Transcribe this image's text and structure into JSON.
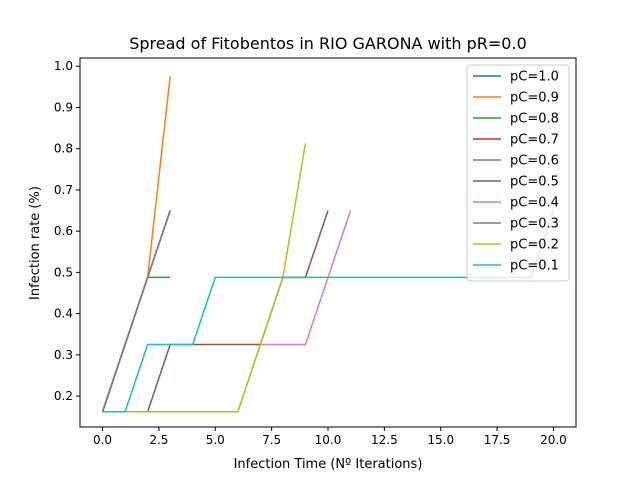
{
  "chart_data": {
    "type": "line",
    "title": "Spread of Fitobentos in RIO GARONA with pR=0.0",
    "xlabel": "Infection Time (Nº Iterations)",
    "ylabel": "Infection rate (%)",
    "xlim": [
      -1.0,
      21.0
    ],
    "ylim": [
      0.125,
      1.02
    ],
    "xticks": [
      0.0,
      2.5,
      5.0,
      7.5,
      10.0,
      12.5,
      15.0,
      17.5,
      20.0
    ],
    "xtick_labels": [
      "0.0",
      "2.5",
      "5.0",
      "7.5",
      "10.0",
      "12.5",
      "15.0",
      "17.5",
      "20.0"
    ],
    "yticks": [
      0.2,
      0.3,
      0.4,
      0.5,
      0.6,
      0.7,
      0.8,
      0.9,
      1.0
    ],
    "ytick_labels": [
      "0.2",
      "0.3",
      "0.4",
      "0.5",
      "0.6",
      "0.7",
      "0.8",
      "0.9",
      "1.0"
    ],
    "grid": false,
    "legend_position": "top-right",
    "series": [
      {
        "name": "pC=1.0",
        "color": "#1f77b4",
        "x": [
          0,
          1,
          2,
          3
        ],
        "y": [
          0.162,
          0.325,
          0.488,
          0.65
        ]
      },
      {
        "name": "pC=0.9",
        "color": "#ff7f0e",
        "x": [
          0,
          1,
          2,
          3
        ],
        "y": [
          0.162,
          0.325,
          0.488,
          0.976
        ]
      },
      {
        "name": "pC=0.8",
        "color": "#2ca02c",
        "x": [
          0,
          1,
          2,
          3
        ],
        "y": [
          0.162,
          0.325,
          0.488,
          0.488
        ]
      },
      {
        "name": "pC=0.7",
        "color": "#d62728",
        "x": [
          0,
          1,
          2,
          3
        ],
        "y": [
          0.162,
          0.325,
          0.488,
          0.65
        ]
      },
      {
        "name": "pC=0.6",
        "color": "#9467bd",
        "x": [
          0,
          1,
          2,
          3
        ],
        "y": [
          0.162,
          0.325,
          0.488,
          0.65
        ]
      },
      {
        "name": "pC=0.5",
        "color": "#8c564b",
        "x": [
          0,
          1,
          2,
          3,
          4,
          5,
          6,
          7,
          8,
          9,
          10
        ],
        "y": [
          0.162,
          0.162,
          0.162,
          0.325,
          0.325,
          0.325,
          0.325,
          0.325,
          0.488,
          0.488,
          0.65
        ]
      },
      {
        "name": "pC=0.4",
        "color": "#e377c2",
        "x": [
          0,
          1,
          2,
          3,
          4,
          5,
          6,
          7,
          8,
          9,
          10,
          11
        ],
        "y": [
          0.162,
          0.162,
          0.162,
          0.162,
          0.162,
          0.162,
          0.162,
          0.325,
          0.325,
          0.325,
          0.488,
          0.65
        ]
      },
      {
        "name": "pC=0.3",
        "color": "#7f7f7f",
        "x": [
          0,
          1,
          2,
          3
        ],
        "y": [
          0.162,
          0.325,
          0.488,
          0.65
        ]
      },
      {
        "name": "pC=0.2",
        "color": "#bcbd22",
        "x": [
          0,
          1,
          2,
          3,
          4,
          5,
          6,
          7,
          8,
          9
        ],
        "y": [
          0.162,
          0.162,
          0.162,
          0.162,
          0.162,
          0.162,
          0.162,
          0.325,
          0.488,
          0.813
        ]
      },
      {
        "name": "pC=0.1",
        "color": "#17becf",
        "x": [
          0,
          1,
          2,
          3,
          4,
          5,
          6,
          7,
          8,
          9,
          10,
          11,
          12,
          13,
          14,
          15,
          16,
          17,
          18,
          19,
          20
        ],
        "y": [
          0.162,
          0.162,
          0.325,
          0.325,
          0.325,
          0.488,
          0.488,
          0.488,
          0.488,
          0.488,
          0.488,
          0.488,
          0.488,
          0.488,
          0.488,
          0.488,
          0.488,
          0.488,
          0.488,
          0.488,
          0.65
        ]
      }
    ]
  }
}
